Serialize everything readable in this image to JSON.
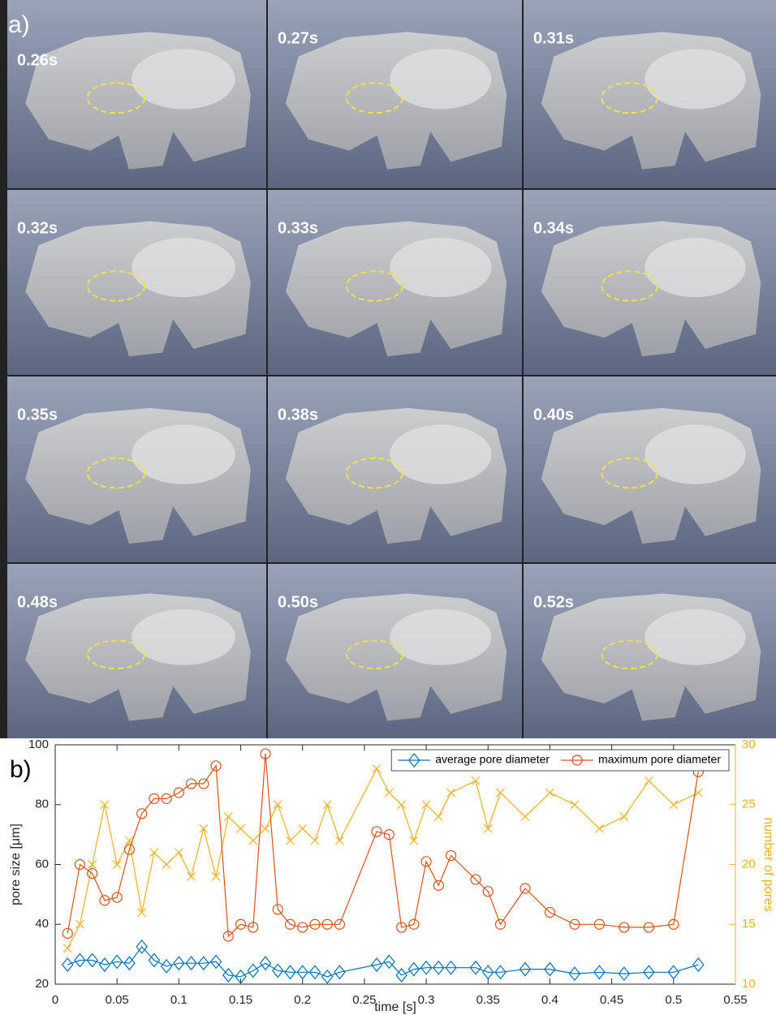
{
  "panel_a": {
    "label": "a)",
    "frames": [
      "0.26s",
      "0.27s",
      "0.31s",
      "0.32s",
      "0.33s",
      "0.34s",
      "0.35s",
      "0.38s",
      "0.40s",
      "0.48s",
      "0.50s",
      "0.52s"
    ]
  },
  "chart_data": {
    "type": "line",
    "panel_label": "b)",
    "xlabel": "time [s]",
    "ylabel": "pore size [μm]",
    "y2label": "number of pores",
    "x": [
      0.01,
      0.02,
      0.03,
      0.04,
      0.05,
      0.06,
      0.07,
      0.08,
      0.09,
      0.1,
      0.11,
      0.12,
      0.13,
      0.14,
      0.15,
      0.16,
      0.17,
      0.18,
      0.19,
      0.2,
      0.21,
      0.22,
      0.23,
      0.26,
      0.27,
      0.28,
      0.29,
      0.3,
      0.31,
      0.32,
      0.34,
      0.35,
      0.36,
      0.38,
      0.4,
      0.42,
      0.44,
      0.46,
      0.48,
      0.5,
      0.52
    ],
    "series": [
      {
        "name": "average pore diameter",
        "color": "#0072BD",
        "marker": "diamond",
        "values": [
          26.5,
          28,
          28,
          26.5,
          27.5,
          27,
          32.5,
          28,
          26,
          27,
          27,
          27,
          27.5,
          23,
          22.5,
          24.5,
          27,
          24.5,
          24,
          24,
          24,
          22.5,
          24,
          26.5,
          27.5,
          23,
          25,
          25.5,
          25.5,
          25.5,
          25.5,
          24,
          24,
          25,
          25,
          23.5,
          24,
          23.5,
          24,
          24,
          26.5
        ]
      },
      {
        "name": "maximum pore diameter",
        "color": "#D95319",
        "marker": "circle",
        "values": [
          37,
          60,
          57,
          48,
          49,
          65,
          77,
          82,
          82,
          84,
          87,
          87,
          93,
          36,
          40,
          39,
          97,
          45,
          40,
          39,
          40,
          40,
          40,
          71,
          70,
          39,
          40,
          61,
          53,
          63,
          55,
          51,
          40,
          52,
          44,
          40,
          40,
          39,
          39,
          40,
          91
        ]
      },
      {
        "color": "#EDB120",
        "marker": "x",
        "axis": "y2",
        "values": [
          13,
          15,
          20,
          25,
          20,
          22,
          16,
          21,
          20,
          21,
          19,
          23,
          19,
          24,
          23,
          22,
          23,
          25,
          22,
          23,
          22,
          25,
          22,
          28,
          26,
          25,
          22,
          25,
          24,
          26,
          27,
          23,
          26,
          24,
          26,
          25,
          23,
          24,
          27,
          25,
          26
        ]
      }
    ],
    "xlim": [
      0,
      0.55
    ],
    "xticks": [
      0,
      0.05,
      0.1,
      0.15,
      0.2,
      0.25,
      0.3,
      0.35,
      0.4,
      0.45,
      0.5,
      0.55
    ],
    "ylim": [
      20,
      100
    ],
    "yticks": [
      20,
      40,
      60,
      80,
      100
    ],
    "y2lim": [
      10,
      30
    ],
    "y2ticks": [
      10,
      15,
      20,
      25,
      30
    ],
    "legend": "upper right",
    "grid": false
  }
}
